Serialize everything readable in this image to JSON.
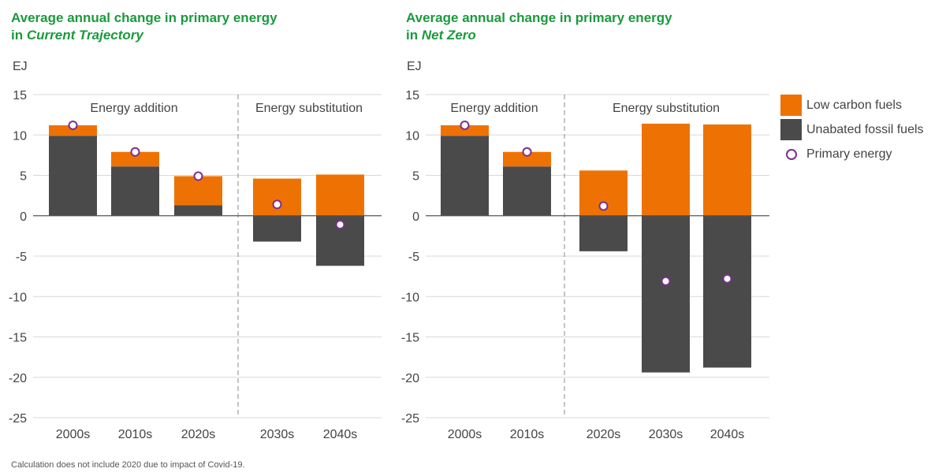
{
  "title_left": {
    "line1": "Average annual change in primary energy",
    "line2_prefix": "in ",
    "line2_italic": "Current Trajectory"
  },
  "title_right": {
    "line1": "Average annual change in primary energy",
    "line2_prefix": "in ",
    "line2_italic": "Net Zero"
  },
  "unit_label": "EJ",
  "footnote": "Calculation does not include 2020 due to impact of Covid-19.",
  "colors": {
    "low_carbon": "#ee7203",
    "fossil": "#4a4a4a",
    "primary": "#7b2f8e",
    "title": "#1a9a3c"
  },
  "legend": {
    "low_carbon": "Low carbon fuels",
    "fossil": "Unabated fossil fuels",
    "primary": "Primary energy"
  },
  "chart_data": [
    {
      "type": "bar",
      "title": "Average annual change in primary energy in Current Trajectory",
      "ylabel": "EJ",
      "ylim": [
        -25,
        15
      ],
      "yticks": [
        15,
        10,
        5,
        0,
        -5,
        -10,
        -15,
        -20,
        -25
      ],
      "categories": [
        "2000s",
        "2010s",
        "2020s",
        "2030s",
        "2040s"
      ],
      "section_labels": [
        "Energy addition",
        "Energy substitution"
      ],
      "series": [
        {
          "name": "Low carbon fuels",
          "values": [
            1.3,
            1.8,
            3.6,
            4.6,
            5.1
          ]
        },
        {
          "name": "Unabated fossil fuels",
          "values": [
            9.9,
            6.1,
            1.3,
            -3.2,
            -6.2
          ]
        },
        {
          "name": "Primary energy",
          "values": [
            11.2,
            7.9,
            4.9,
            1.4,
            -1.1
          ]
        }
      ]
    },
    {
      "type": "bar",
      "title": "Average annual change in primary energy in Net Zero",
      "ylabel": "EJ",
      "ylim": [
        -25,
        15
      ],
      "yticks": [
        15,
        10,
        5,
        0,
        -5,
        -10,
        -15,
        -20,
        -25
      ],
      "categories": [
        "2000s",
        "2010s",
        "2020s",
        "2030s",
        "2040s"
      ],
      "section_labels": [
        "Energy addition",
        "Energy substitution"
      ],
      "series": [
        {
          "name": "Low carbon fuels",
          "values": [
            1.3,
            1.8,
            5.6,
            11.4,
            11.3
          ]
        },
        {
          "name": "Unabated fossil fuels",
          "values": [
            9.9,
            6.1,
            -4.4,
            -19.4,
            -18.8
          ]
        },
        {
          "name": "Primary energy",
          "values": [
            11.2,
            7.9,
            1.2,
            -8.1,
            -7.8
          ]
        }
      ]
    }
  ]
}
